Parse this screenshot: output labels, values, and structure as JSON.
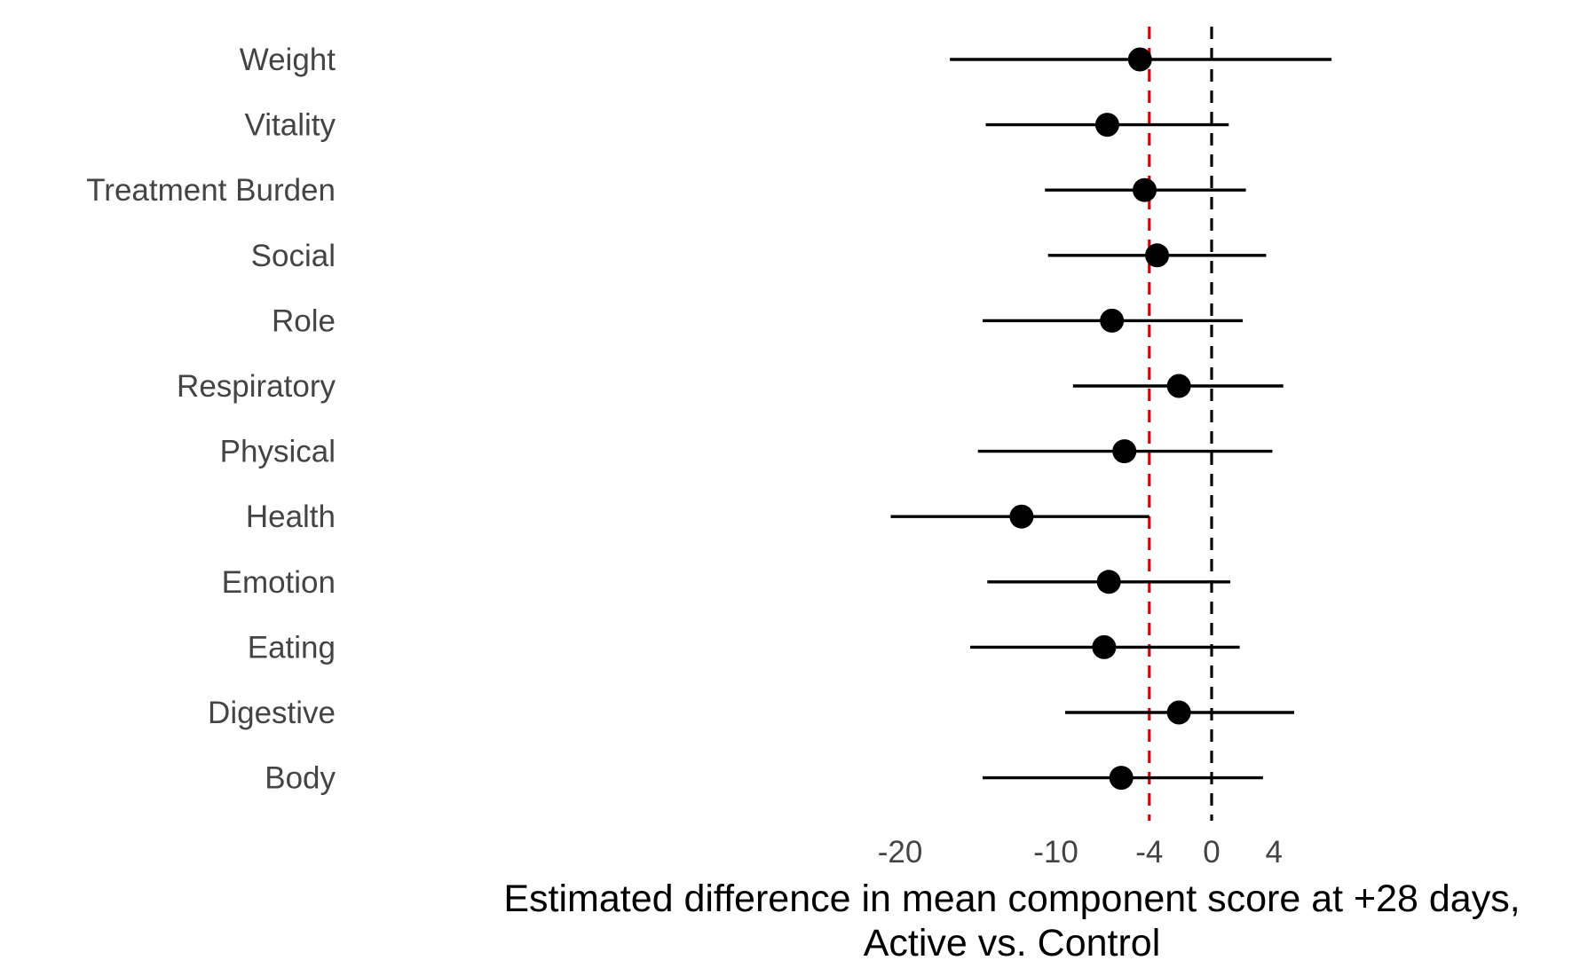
{
  "chart_data": {
    "type": "forest",
    "xlabel": "Estimated difference in mean component score at +28 days,",
    "xlabel_line2": "Active vs. Control",
    "xlim": [
      -20.5,
      7.5
    ],
    "xticks": [
      -20,
      -10,
      -4,
      0,
      4
    ],
    "xtick_labels": [
      "-20",
      "-10",
      "-4",
      "0",
      "4"
    ],
    "reference_lines": [
      {
        "x": -4,
        "color": "#e00000",
        "style": "dashed"
      },
      {
        "x": 0,
        "color": "#000000",
        "style": "dashed"
      }
    ],
    "rows": [
      {
        "label": "Weight",
        "estimate": -4.6,
        "lower": -16.8,
        "upper": 7.7
      },
      {
        "label": "Vitality",
        "estimate": -6.7,
        "lower": -14.5,
        "upper": 1.1
      },
      {
        "label": "Treatment Burden",
        "estimate": -4.3,
        "lower": -10.7,
        "upper": 2.2
      },
      {
        "label": "Social",
        "estimate": -3.5,
        "lower": -10.5,
        "upper": 3.5
      },
      {
        "label": "Role",
        "estimate": -6.4,
        "lower": -14.7,
        "upper": 2.0
      },
      {
        "label": "Respiratory",
        "estimate": -2.1,
        "lower": -8.9,
        "upper": 4.6
      },
      {
        "label": "Physical",
        "estimate": -5.6,
        "lower": -15.0,
        "upper": 3.9
      },
      {
        "label": "Health",
        "estimate": -12.2,
        "lower": -20.6,
        "upper": -4.0
      },
      {
        "label": "Emotion",
        "estimate": -6.6,
        "lower": -14.4,
        "upper": 1.2
      },
      {
        "label": "Eating",
        "estimate": -6.9,
        "lower": -15.5,
        "upper": 1.8
      },
      {
        "label": "Digestive",
        "estimate": -2.1,
        "lower": -9.4,
        "upper": 5.3
      },
      {
        "label": "Body",
        "estimate": -5.8,
        "lower": -14.7,
        "upper": 3.3
      }
    ]
  }
}
